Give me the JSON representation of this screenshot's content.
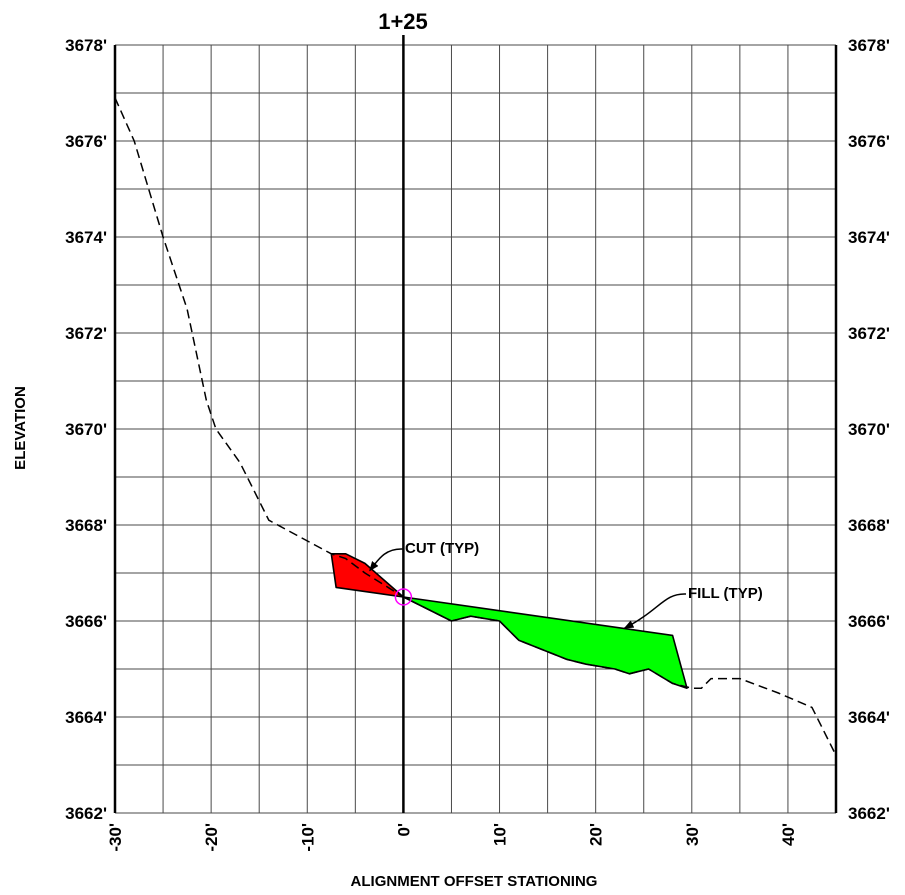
{
  "chart_data": {
    "type": "area",
    "title": "1+25",
    "xlabel": "ALIGNMENT OFFSET STATIONING",
    "ylabel": "ELEVATION",
    "xlim": [
      -30,
      45
    ],
    "ylim": [
      3662,
      3678
    ],
    "x_ticks": [
      -30,
      -20,
      -10,
      0,
      10,
      20,
      30,
      40
    ],
    "x_tick_labels": [
      "-30'",
      "-20'",
      "-10'",
      "0'",
      "10'",
      "20'",
      "30'",
      "40'"
    ],
    "y_ticks": [
      3662,
      3664,
      3666,
      3668,
      3670,
      3672,
      3674,
      3676,
      3678
    ],
    "y_tick_labels": [
      "3662'",
      "3664'",
      "3666'",
      "3668'",
      "3670'",
      "3672'",
      "3674'",
      "3676'",
      "3678'"
    ],
    "grid": true,
    "series": [
      {
        "style": "dashed",
        "color": "#000000",
        "x": [
          -30,
          -28,
          -25,
          -22.5,
          -20.5,
          -19.5,
          -17,
          -14,
          -7.5,
          -6,
          -4,
          0,
          5,
          7,
          10,
          12,
          17,
          19,
          22,
          23.5,
          25.5,
          28,
          30,
          31,
          32,
          35,
          39,
          42.5,
          45
        ],
        "y": [
          3676.9,
          3676,
          3674,
          3672.5,
          3670.6,
          3670,
          3669.3,
          3668.1,
          3667.4,
          3667.3,
          3667,
          3666.5,
          3666,
          3666.1,
          3666,
          3665.6,
          3665.2,
          3665.1,
          3665,
          3664.9,
          3665,
          3664.7,
          3664.6,
          3664.6,
          3664.8,
          3664.8,
          3664.5,
          3664.2,
          3663.2
        ]
      }
    ],
    "regions": [
      {
        "color": "#ff0000",
        "x": [
          -7.5,
          -6,
          -4,
          0,
          -7
        ],
        "y": [
          3667.4,
          3667.4,
          3667.2,
          3666.5,
          3666.7
        ]
      },
      {
        "color": "#00ff00",
        "x": [
          0,
          28,
          29.5,
          28,
          25.5,
          23.5,
          22,
          19,
          17,
          12,
          10,
          7,
          5,
          0
        ],
        "y": [
          3666.5,
          3665.7,
          3664.6,
          3664.7,
          3665,
          3664.9,
          3665,
          3665.1,
          3665.2,
          3665.6,
          3666,
          3666.1,
          3666,
          3666.5
        ]
      }
    ],
    "annotations": [
      {
        "text": "CUT (TYP)",
        "points_to": {
          "x": -3.5,
          "y": 3667.05
        }
      },
      {
        "text": "FILL (TYP)",
        "points_to": {
          "x": 23,
          "y": 3665.85
        }
      }
    ],
    "marker": {
      "x": 0,
      "y": 3666.5,
      "shape": "circle",
      "color": "#ff00ff"
    }
  }
}
